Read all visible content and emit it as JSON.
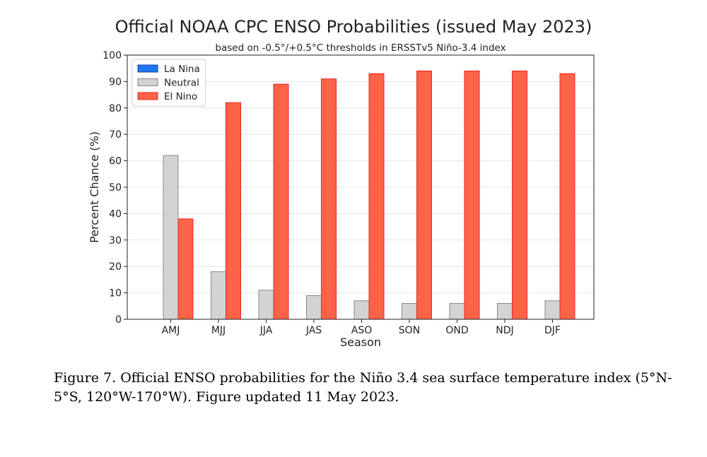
{
  "chart_data": {
    "type": "bar",
    "title": "Official NOAA CPC ENSO Probabilities (issued May 2023)",
    "subtitle": "based on -0.5°/+0.5°C thresholds in ERSSTv5 Niño-3.4 index",
    "xlabel": "Season",
    "ylabel": "Percent Chance (%)",
    "ylim": [
      0,
      100
    ],
    "yticks": [
      0,
      10,
      20,
      30,
      40,
      50,
      60,
      70,
      80,
      90,
      100
    ],
    "legend_position": "top-left",
    "categories": [
      "AMJ",
      "MJJ",
      "JJA",
      "JAS",
      "ASO",
      "SON",
      "OND",
      "NDJ",
      "DJF"
    ],
    "series": [
      {
        "name": "La Nina",
        "color": "#1f77f4",
        "edge": "#1a3fa0",
        "values": [
          0,
          0,
          0,
          0,
          0,
          0,
          0,
          0,
          0
        ]
      },
      {
        "name": "Neutral",
        "color": "#d3d3d3",
        "edge": "#888888",
        "values": [
          62,
          18,
          11,
          9,
          7,
          6,
          6,
          6,
          7
        ]
      },
      {
        "name": "El Nino",
        "color": "#ff6347",
        "edge": "#e0282a",
        "values": [
          38,
          82,
          89,
          91,
          93,
          94,
          94,
          94,
          93
        ]
      }
    ]
  },
  "caption": "Figure 7. Official ENSO probabilities for the Niño 3.4 sea surface temperature index (5°N-5°S, 120°W-170°W). Figure updated 11 May 2023."
}
